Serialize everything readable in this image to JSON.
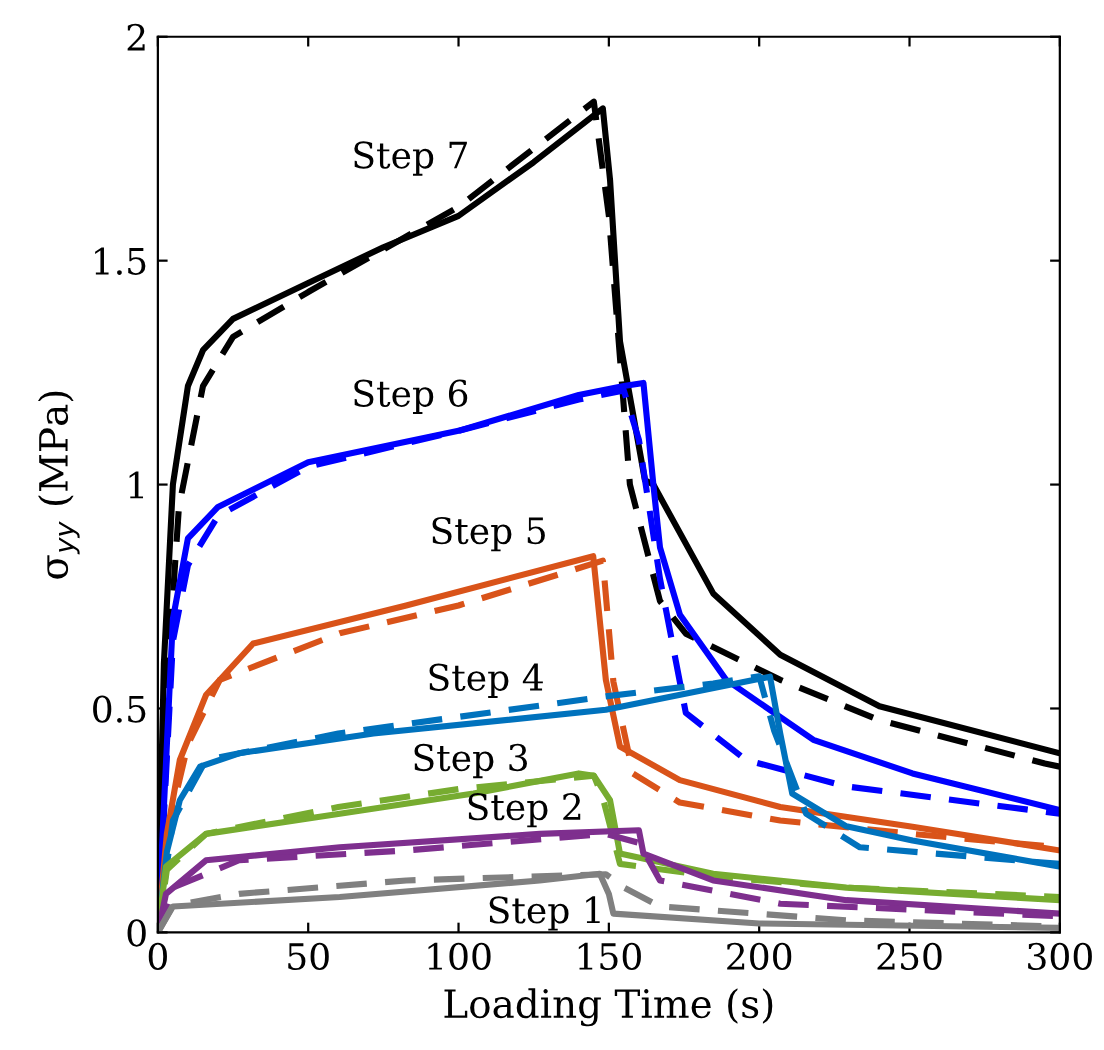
{
  "chart_data": {
    "type": "line",
    "xlabel": "Loading Time (s)",
    "ylabel": "σ$_{yy}$ (MPa)",
    "xlim": [
      0,
      300
    ],
    "ylim": [
      0,
      2
    ],
    "xticks": [
      0,
      50,
      100,
      150,
      200,
      250,
      300
    ],
    "yticks": [
      0,
      0.5,
      1,
      1.5,
      2
    ],
    "grid": false,
    "marker": "none",
    "series": [
      {
        "name": "Step 7",
        "color": "#000000",
        "line_style": "solid",
        "x": [
          0,
          2,
          5,
          10,
          15,
          25,
          50,
          75,
          100,
          125,
          148,
          150.4,
          153.7,
          162,
          164.8,
          184.7,
          207,
          240,
          300
        ],
        "values": [
          0,
          0.6,
          1.0,
          1.22,
          1.3,
          1.37,
          1.45,
          1.53,
          1.6,
          1.72,
          1.84,
          1.68,
          1.32,
          1.01,
          1.0,
          0.757,
          0.62,
          0.505,
          0.4
        ]
      },
      {
        "color": "#000000",
        "line_style": "dashed",
        "x": [
          0,
          3,
          7,
          15,
          25,
          50,
          100,
          145,
          150,
          157,
          167,
          175.6,
          207,
          240,
          295,
          300
        ],
        "values": [
          0,
          0.55,
          0.95,
          1.22,
          1.33,
          1.43,
          1.62,
          1.855,
          1.6,
          1.0,
          0.74,
          0.667,
          0.564,
          0.474,
          0.377,
          0.37
        ]
      },
      {
        "name": "Step 6",
        "color": "#0000ff",
        "line_style": "solid",
        "x": [
          0,
          5,
          10,
          20,
          50,
          100,
          140,
          155,
          161.5,
          164.8,
          167,
          173.6,
          189,
          218,
          251,
          300
        ],
        "values": [
          0,
          0.7,
          0.88,
          0.95,
          1.05,
          1.12,
          1.2,
          1.22,
          1.227,
          1.0,
          0.86,
          0.71,
          0.564,
          0.43,
          0.355,
          0.273
        ]
      },
      {
        "color": "#0000ff",
        "line_style": "dashed",
        "x": [
          0,
          5,
          10,
          20,
          50,
          100,
          140,
          155,
          160,
          167,
          175.6,
          195.6,
          229,
          300
        ],
        "values": [
          0,
          0.65,
          0.82,
          0.93,
          1.04,
          1.12,
          1.19,
          1.21,
          1.1,
          0.79,
          0.49,
          0.385,
          0.326,
          0.265
        ]
      },
      {
        "name": "Step 5",
        "color": "#d95319",
        "line_style": "solid",
        "x": [
          0,
          3,
          7.3,
          16,
          31.7,
          82.6,
          144.8,
          149,
          153.7,
          173.6,
          207,
          251,
          300
        ],
        "values": [
          0,
          0.22,
          0.385,
          0.53,
          0.645,
          0.73,
          0.84,
          0.564,
          0.415,
          0.34,
          0.28,
          0.236,
          0.183
        ]
      },
      {
        "color": "#d95319",
        "line_style": "dashed",
        "x": [
          0,
          4,
          10,
          20.6,
          60.5,
          100,
          148,
          151.5,
          158,
          173.6,
          207,
          251,
          300
        ],
        "values": [
          0,
          0.25,
          0.42,
          0.564,
          0.668,
          0.73,
          0.83,
          0.56,
          0.355,
          0.29,
          0.25,
          0.22,
          0.19
        ]
      },
      {
        "name": "Step 4",
        "color": "#0072bd",
        "line_style": "solid",
        "x": [
          0,
          3,
          7.3,
          14,
          27,
          71.7,
          149,
          203.6,
          207,
          211,
          229,
          251,
          300
        ],
        "values": [
          0,
          0.18,
          0.295,
          0.37,
          0.4,
          0.444,
          0.497,
          0.571,
          0.444,
          0.31,
          0.237,
          0.205,
          0.147
        ]
      },
      {
        "color": "#0072bd",
        "line_style": "dashed",
        "x": [
          0,
          5,
          16,
          60,
          149,
          184.7,
          200,
          205,
          215.6,
          233.5,
          300
        ],
        "values": [
          0,
          0.25,
          0.385,
          0.444,
          0.527,
          0.556,
          0.572,
          0.45,
          0.265,
          0.19,
          0.153
        ]
      },
      {
        "name": "Step 3",
        "color": "#77ac30",
        "line_style": "solid",
        "x": [
          0,
          2.7,
          16,
          60.5,
          105,
          140,
          145,
          150.4,
          153.7,
          184.7,
          229,
          300
        ],
        "values": [
          0,
          0.147,
          0.22,
          0.265,
          0.31,
          0.355,
          0.35,
          0.295,
          0.176,
          0.131,
          0.1,
          0.072
        ]
      },
      {
        "color": "#77ac30",
        "line_style": "dashed",
        "x": [
          0,
          3,
          16,
          60,
          100,
          145,
          148,
          153.7,
          184.7,
          229,
          300
        ],
        "values": [
          0,
          0.14,
          0.22,
          0.28,
          0.32,
          0.35,
          0.3,
          0.153,
          0.125,
          0.1,
          0.079
        ]
      },
      {
        "name": "Step 2",
        "color": "#7e2f8e",
        "line_style": "solid",
        "x": [
          0,
          2.7,
          16,
          60.5,
          127,
          160,
          161.5,
          184.7,
          229,
          300
        ],
        "values": [
          0,
          0.086,
          0.161,
          0.19,
          0.22,
          0.228,
          0.176,
          0.116,
          0.072,
          0.042
        ]
      },
      {
        "color": "#7e2f8e",
        "line_style": "dashed",
        "x": [
          0,
          5,
          27,
          82.6,
          149,
          160,
          167,
          207,
          300
        ],
        "values": [
          0,
          0.1,
          0.161,
          0.183,
          0.22,
          0.2,
          0.116,
          0.064,
          0.036
        ]
      },
      {
        "name": "Step 1",
        "color": "#808080",
        "line_style": "solid",
        "x": [
          0,
          5,
          60.5,
          127,
          147,
          150,
          151.5,
          200,
          300
        ],
        "values": [
          0,
          0.058,
          0.079,
          0.116,
          0.131,
          0.086,
          0.042,
          0.02,
          0.01
        ]
      },
      {
        "color": "#808080",
        "line_style": "dashed",
        "x": [
          0,
          5,
          27,
          82.6,
          149,
          155,
          167,
          229,
          300
        ],
        "values": [
          0,
          0.06,
          0.086,
          0.116,
          0.13,
          0.1,
          0.058,
          0.027,
          0.013
        ]
      }
    ]
  }
}
